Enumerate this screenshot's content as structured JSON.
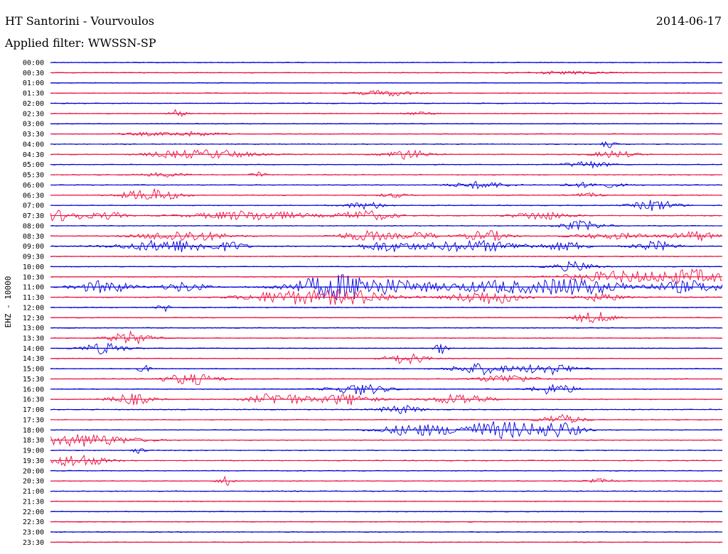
{
  "header": {
    "station": "HT Santorini - Vourvoulos",
    "date": "2014-06-17",
    "filter_label": "Applied filter:",
    "filter_value": "WWSSN-SP"
  },
  "colors": {
    "trace_a": "#0000dd",
    "trace_b": "#ee1144",
    "text": "#000000",
    "background": "#ffffff"
  },
  "chart_data": {
    "type": "line",
    "title": "HT Santorini - Vourvoulos",
    "ylabel": "EHZ - 10000",
    "xlabel": "",
    "grid": false,
    "legend": "none",
    "rows": [
      {
        "time": "00:00",
        "color": "trace_a",
        "events": []
      },
      {
        "time": "00:30",
        "color": "trace_b",
        "events": [
          [
            0.77,
            0.06,
            2
          ]
        ]
      },
      {
        "time": "01:00",
        "color": "trace_a",
        "events": []
      },
      {
        "time": "01:30",
        "color": "trace_b",
        "events": [
          [
            0.5,
            0.04,
            4
          ]
        ]
      },
      {
        "time": "02:00",
        "color": "trace_a",
        "events": []
      },
      {
        "time": "02:30",
        "color": "trace_b",
        "events": [
          [
            0.19,
            0.01,
            6
          ],
          [
            0.55,
            0.02,
            2
          ]
        ]
      },
      {
        "time": "03:00",
        "color": "trace_a",
        "events": []
      },
      {
        "time": "03:30",
        "color": "trace_b",
        "events": [
          [
            0.21,
            0.04,
            3
          ],
          [
            0.14,
            0.03,
            2
          ]
        ]
      },
      {
        "time": "04:00",
        "color": "trace_a",
        "events": [
          [
            0.83,
            0.01,
            5
          ]
        ]
      },
      {
        "time": "04:30",
        "color": "trace_b",
        "events": [
          [
            0.18,
            0.04,
            4
          ],
          [
            0.25,
            0.05,
            6
          ],
          [
            0.53,
            0.03,
            7
          ],
          [
            0.84,
            0.03,
            5
          ]
        ]
      },
      {
        "time": "05:00",
        "color": "trace_a",
        "events": [
          [
            0.8,
            0.03,
            5
          ]
        ]
      },
      {
        "time": "05:30",
        "color": "trace_b",
        "events": [
          [
            0.17,
            0.03,
            3
          ],
          [
            0.31,
            0.01,
            5
          ]
        ]
      },
      {
        "time": "06:00",
        "color": "trace_a",
        "events": [
          [
            0.64,
            0.04,
            5
          ],
          [
            0.81,
            0.04,
            4
          ]
        ]
      },
      {
        "time": "06:30",
        "color": "trace_b",
        "events": [
          [
            0.15,
            0.04,
            9
          ],
          [
            0.8,
            0.02,
            3
          ],
          [
            0.51,
            0.02,
            3
          ]
        ]
      },
      {
        "time": "07:00",
        "color": "trace_a",
        "events": [
          [
            0.47,
            0.03,
            5
          ],
          [
            0.9,
            0.03,
            8
          ]
        ]
      },
      {
        "time": "07:30",
        "color": "trace_b",
        "events": [
          [
            0.02,
            0.04,
            8
          ],
          [
            0.09,
            0.02,
            5
          ],
          [
            0.3,
            0.08,
            7
          ],
          [
            0.47,
            0.04,
            7
          ],
          [
            0.73,
            0.04,
            6
          ]
        ]
      },
      {
        "time": "08:00",
        "color": "trace_a",
        "events": [
          [
            0.79,
            0.03,
            7
          ]
        ]
      },
      {
        "time": "08:30",
        "color": "trace_b",
        "events": [
          [
            0.2,
            0.06,
            8
          ],
          [
            0.47,
            0.04,
            7
          ],
          [
            0.55,
            0.03,
            5
          ],
          [
            0.65,
            0.03,
            8
          ],
          [
            0.84,
            0.06,
            4
          ],
          [
            0.96,
            0.03,
            7
          ]
        ]
      },
      {
        "time": "09:00",
        "color": "trace_a",
        "events": [
          [
            0.18,
            0.07,
            9
          ],
          [
            0.27,
            0.02,
            5
          ],
          [
            0.5,
            0.04,
            7
          ],
          [
            0.63,
            0.08,
            8
          ],
          [
            0.77,
            0.03,
            6
          ],
          [
            0.9,
            0.03,
            7
          ]
        ]
      },
      {
        "time": "09:30",
        "color": "trace_b",
        "events": []
      },
      {
        "time": "10:00",
        "color": "trace_a",
        "events": [
          [
            0.78,
            0.03,
            7
          ]
        ]
      },
      {
        "time": "10:30",
        "color": "trace_b",
        "events": [
          [
            0.85,
            0.08,
            8
          ],
          [
            0.96,
            0.05,
            9
          ]
        ]
      },
      {
        "time": "11:00",
        "color": "trace_a",
        "events": [
          [
            0.08,
            0.04,
            9
          ],
          [
            0.2,
            0.03,
            7
          ],
          [
            0.42,
            0.06,
            12
          ],
          [
            0.49,
            0.1,
            10
          ],
          [
            0.67,
            0.06,
            9
          ],
          [
            0.76,
            0.04,
            8
          ],
          [
            0.81,
            0.06,
            8
          ],
          [
            0.95,
            0.05,
            9
          ]
        ]
      },
      {
        "time": "11:30",
        "color": "trace_b",
        "events": [
          [
            0.35,
            0.06,
            9
          ],
          [
            0.45,
            0.06,
            10
          ],
          [
            0.65,
            0.05,
            10
          ],
          [
            0.82,
            0.03,
            6
          ]
        ]
      },
      {
        "time": "12:00",
        "color": "trace_a",
        "events": [
          [
            0.17,
            0.01,
            5
          ]
        ]
      },
      {
        "time": "12:30",
        "color": "trace_b",
        "events": [
          [
            0.81,
            0.03,
            8
          ]
        ]
      },
      {
        "time": "13:00",
        "color": "trace_a",
        "events": []
      },
      {
        "time": "13:30",
        "color": "trace_b",
        "events": [
          [
            0.12,
            0.03,
            9
          ]
        ]
      },
      {
        "time": "14:00",
        "color": "trace_a",
        "events": [
          [
            0.08,
            0.03,
            8
          ],
          [
            0.58,
            0.01,
            8
          ]
        ]
      },
      {
        "time": "14:30",
        "color": "trace_b",
        "events": [
          [
            0.53,
            0.03,
            8
          ]
        ]
      },
      {
        "time": "15:00",
        "color": "trace_a",
        "events": [
          [
            0.14,
            0.01,
            5
          ],
          [
            0.64,
            0.04,
            8
          ],
          [
            0.74,
            0.04,
            8
          ]
        ]
      },
      {
        "time": "15:30",
        "color": "trace_b",
        "events": [
          [
            0.21,
            0.04,
            8
          ],
          [
            0.68,
            0.04,
            6
          ]
        ]
      },
      {
        "time": "16:00",
        "color": "trace_a",
        "events": [
          [
            0.46,
            0.04,
            8
          ],
          [
            0.75,
            0.03,
            8
          ]
        ]
      },
      {
        "time": "16:30",
        "color": "trace_b",
        "events": [
          [
            0.12,
            0.03,
            8
          ],
          [
            0.34,
            0.04,
            9
          ],
          [
            0.44,
            0.04,
            8
          ],
          [
            0.61,
            0.04,
            8
          ]
        ]
      },
      {
        "time": "17:00",
        "color": "trace_a",
        "events": [
          [
            0.52,
            0.03,
            6
          ]
        ]
      },
      {
        "time": "17:30",
        "color": "trace_b",
        "events": [
          [
            0.76,
            0.03,
            7
          ]
        ]
      },
      {
        "time": "18:00",
        "color": "trace_a",
        "events": [
          [
            0.54,
            0.05,
            8
          ],
          [
            0.67,
            0.07,
            12
          ],
          [
            0.76,
            0.03,
            9
          ]
        ]
      },
      {
        "time": "18:30",
        "color": "trace_b",
        "events": [
          [
            0.05,
            0.07,
            9
          ]
        ]
      },
      {
        "time": "19:00",
        "color": "trace_a",
        "events": [
          [
            0.13,
            0.01,
            4
          ]
        ]
      },
      {
        "time": "19:30",
        "color": "trace_b",
        "events": [
          [
            0.04,
            0.04,
            9
          ]
        ]
      },
      {
        "time": "20:00",
        "color": "trace_a",
        "events": []
      },
      {
        "time": "20:30",
        "color": "trace_b",
        "events": [
          [
            0.26,
            0.01,
            7
          ],
          [
            0.82,
            0.02,
            3
          ]
        ]
      },
      {
        "time": "21:00",
        "color": "trace_a",
        "events": []
      },
      {
        "time": "21:30",
        "color": "trace_b",
        "events": []
      },
      {
        "time": "22:00",
        "color": "trace_a",
        "events": []
      },
      {
        "time": "22:30",
        "color": "trace_b",
        "events": []
      },
      {
        "time": "23:00",
        "color": "trace_a",
        "events": []
      },
      {
        "time": "23:30",
        "color": "trace_b",
        "events": []
      }
    ]
  }
}
